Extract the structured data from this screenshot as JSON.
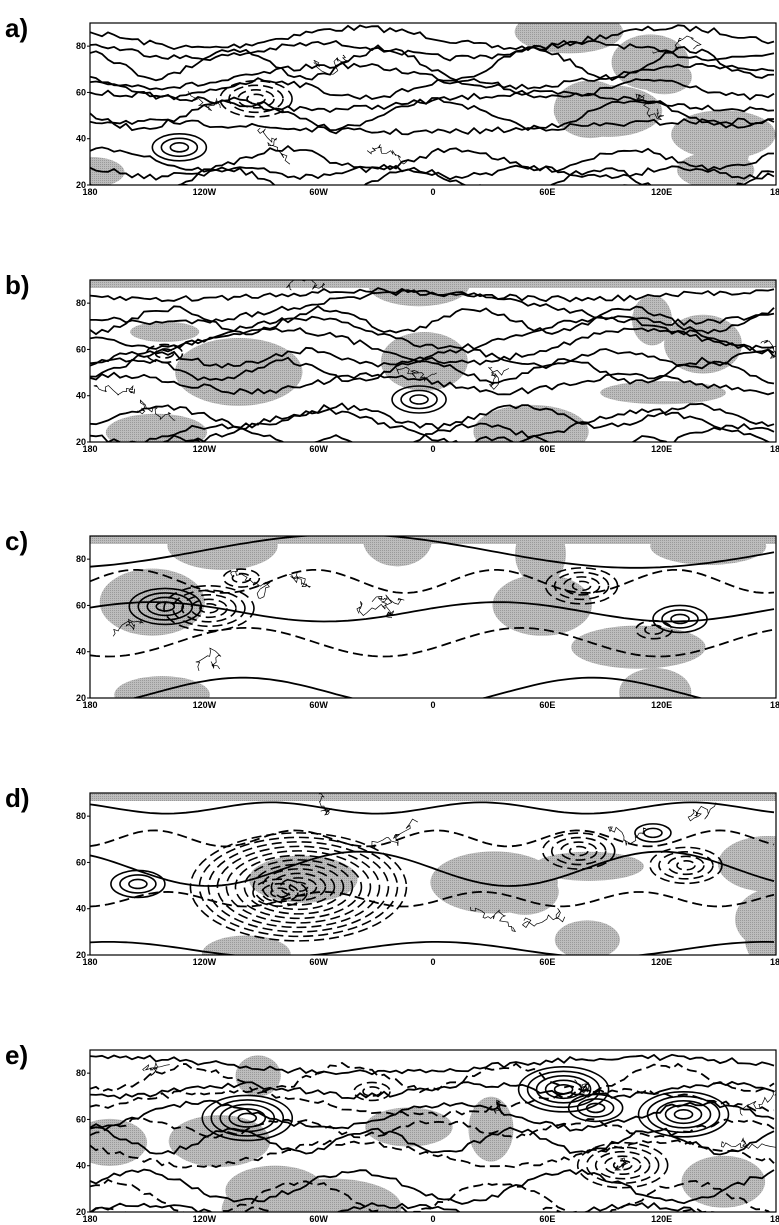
{
  "panels": [
    {
      "label": "a)"
    },
    {
      "label": "b)"
    },
    {
      "label": "c)"
    },
    {
      "label": "d)"
    },
    {
      "label": "e)"
    }
  ],
  "lat_ticks": [
    20,
    40,
    60,
    80
  ],
  "lon_ticks": [
    "180",
    "120W",
    "60W",
    "0",
    "60E",
    "120E",
    "18"
  ]
}
